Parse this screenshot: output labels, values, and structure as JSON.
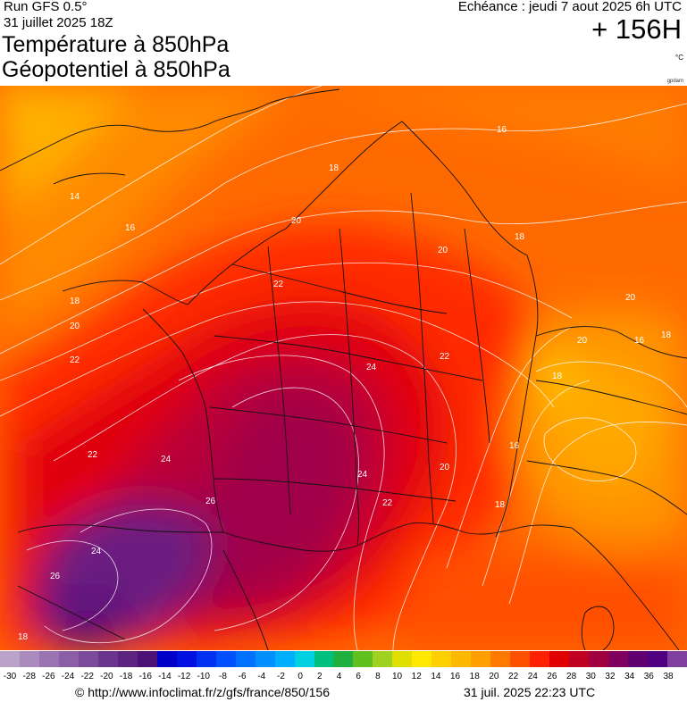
{
  "header": {
    "run": "Run GFS 0.5°",
    "run_date": "31 juillet 2025 18Z",
    "title_line1": "Température à 850hPa",
    "title_line2": "Géopotentiel à 850hPa",
    "echeance": "Echéance : jeudi 7 aout 2025 6h UTC",
    "lead_time": "+ 156H",
    "unit": "°C",
    "credit": "gpdam"
  },
  "map": {
    "contour_labels": [
      {
        "text": "14"
      },
      {
        "text": "16"
      },
      {
        "text": "16"
      },
      {
        "text": "18"
      },
      {
        "text": "18"
      },
      {
        "text": "20"
      },
      {
        "text": "20"
      },
      {
        "text": "22"
      },
      {
        "text": "22"
      },
      {
        "text": "24"
      },
      {
        "text": "24"
      },
      {
        "text": "26"
      },
      {
        "text": "24"
      },
      {
        "text": "26"
      },
      {
        "text": "22"
      },
      {
        "text": "22"
      },
      {
        "text": "20"
      },
      {
        "text": "18"
      },
      {
        "text": "16"
      },
      {
        "text": "18"
      },
      {
        "text": "20"
      },
      {
        "text": "20"
      },
      {
        "text": "16"
      },
      {
        "text": "18"
      },
      {
        "text": "20"
      },
      {
        "text": "22"
      },
      {
        "text": "24"
      },
      {
        "text": "18"
      },
      {
        "text": "18"
      }
    ]
  },
  "colorbar": {
    "ticks": [
      "-30",
      "-28",
      "-26",
      "-24",
      "-22",
      "-20",
      "-18",
      "-16",
      "-14",
      "-12",
      "-10",
      "-8",
      "-6",
      "-4",
      "-2",
      "0",
      "2",
      "4",
      "6",
      "8",
      "10",
      "12",
      "14",
      "16",
      "18",
      "20",
      "22",
      "24",
      "26",
      "28",
      "30",
      "32",
      "34",
      "36",
      "38"
    ],
    "colors": [
      "#b9a3c9",
      "#a98bbd",
      "#9a74b1",
      "#8a5fa5",
      "#7b4a99",
      "#6c358d",
      "#5c2381",
      "#4c1175",
      "#0000c8",
      "#0010e0",
      "#0030f0",
      "#0050ff",
      "#0070ff",
      "#0090ff",
      "#00b0ff",
      "#00d0e0",
      "#00c080",
      "#20b040",
      "#60c020",
      "#a0d020",
      "#e0e000",
      "#ffe800",
      "#ffd000",
      "#ffb800",
      "#ffa000",
      "#ff7800",
      "#ff5000",
      "#ff2000",
      "#e00000",
      "#c00020",
      "#a00040",
      "#800060",
      "#600070",
      "#500080",
      "#8040a0"
    ]
  },
  "footer": {
    "source": "© http://www.infoclimat.fr/z/gfs/france/850/156",
    "updated": "31 juil. 2025 22:23 UTC"
  }
}
